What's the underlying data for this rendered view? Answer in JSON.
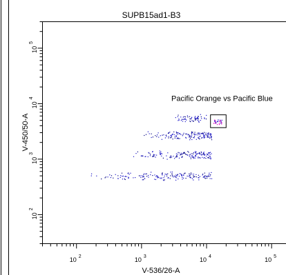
{
  "chart_data": {
    "type": "scatter",
    "title": "SUPB15ad1-B3",
    "xlabel": "V-536/26-A",
    "ylabel": "V-450/50-A",
    "xscale": "log",
    "yscale": "log",
    "xlim": [
      30,
      200000
    ],
    "ylim": [
      30,
      300000
    ],
    "x_ticks": [
      {
        "value": 100,
        "base": "10",
        "exp": "2"
      },
      {
        "value": 1000,
        "base": "10",
        "exp": "3"
      },
      {
        "value": 10000,
        "base": "10",
        "exp": "4"
      },
      {
        "value": 100000,
        "base": "10",
        "exp": "5"
      }
    ],
    "y_ticks": [
      {
        "value": 100,
        "base": "10",
        "exp": "2"
      },
      {
        "value": 1000,
        "base": "10",
        "exp": "3"
      },
      {
        "value": 10000,
        "base": "10",
        "exp": "4"
      },
      {
        "value": 100000,
        "base": "10",
        "exp": "5"
      }
    ],
    "gate": {
      "label": "Pacific Orange vs Pacific Blue",
      "x_range": [
        11500,
        20000
      ],
      "y_range": [
        3700,
        6300
      ]
    },
    "clusters": [
      {
        "x_range": [
          3000,
          10000
        ],
        "y_center": 5500
      },
      {
        "x_range": [
          1000,
          12000
        ],
        "y_center": 2700
      },
      {
        "x_range": [
          600,
          12000
        ],
        "y_center": 1200
      },
      {
        "x_range": [
          100,
          12000
        ],
        "y_center": 500
      }
    ],
    "colors": {
      "events": "#1a14c8",
      "events_dark": "#000080",
      "gated": "#e020c8",
      "axis": "#000000",
      "background": "#ffffff"
    }
  }
}
